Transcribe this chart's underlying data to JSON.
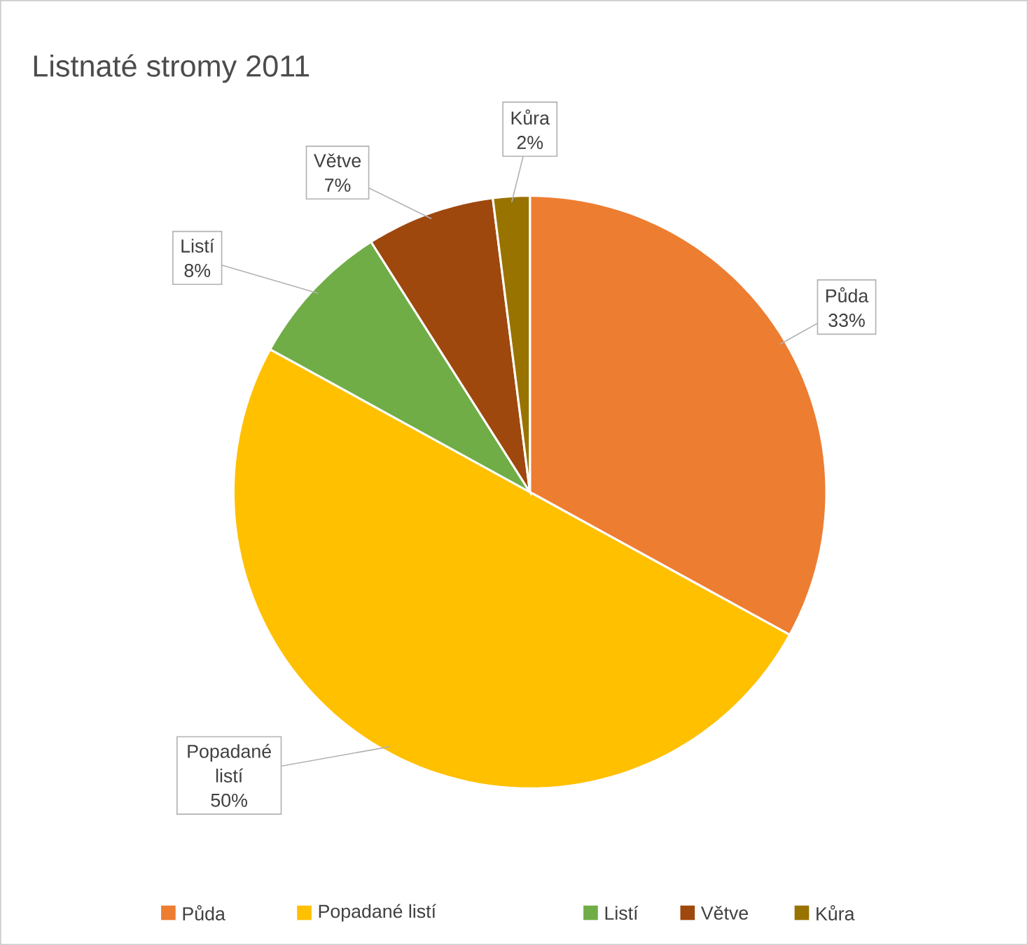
{
  "chart_data": {
    "type": "pie",
    "title": "Listnaté stromy 2011",
    "categories": [
      "Půda",
      "Popadané listí",
      "Listí",
      "Větve",
      "Kůra"
    ],
    "values": [
      33,
      50,
      8,
      7,
      2
    ],
    "colors": [
      "#ed7d31",
      "#ffc000",
      "#70ad47",
      "#9e480e",
      "#997300"
    ],
    "value_labels": [
      "33%",
      "50%",
      "8%",
      "7%",
      "2%"
    ],
    "legend": "bottom"
  }
}
